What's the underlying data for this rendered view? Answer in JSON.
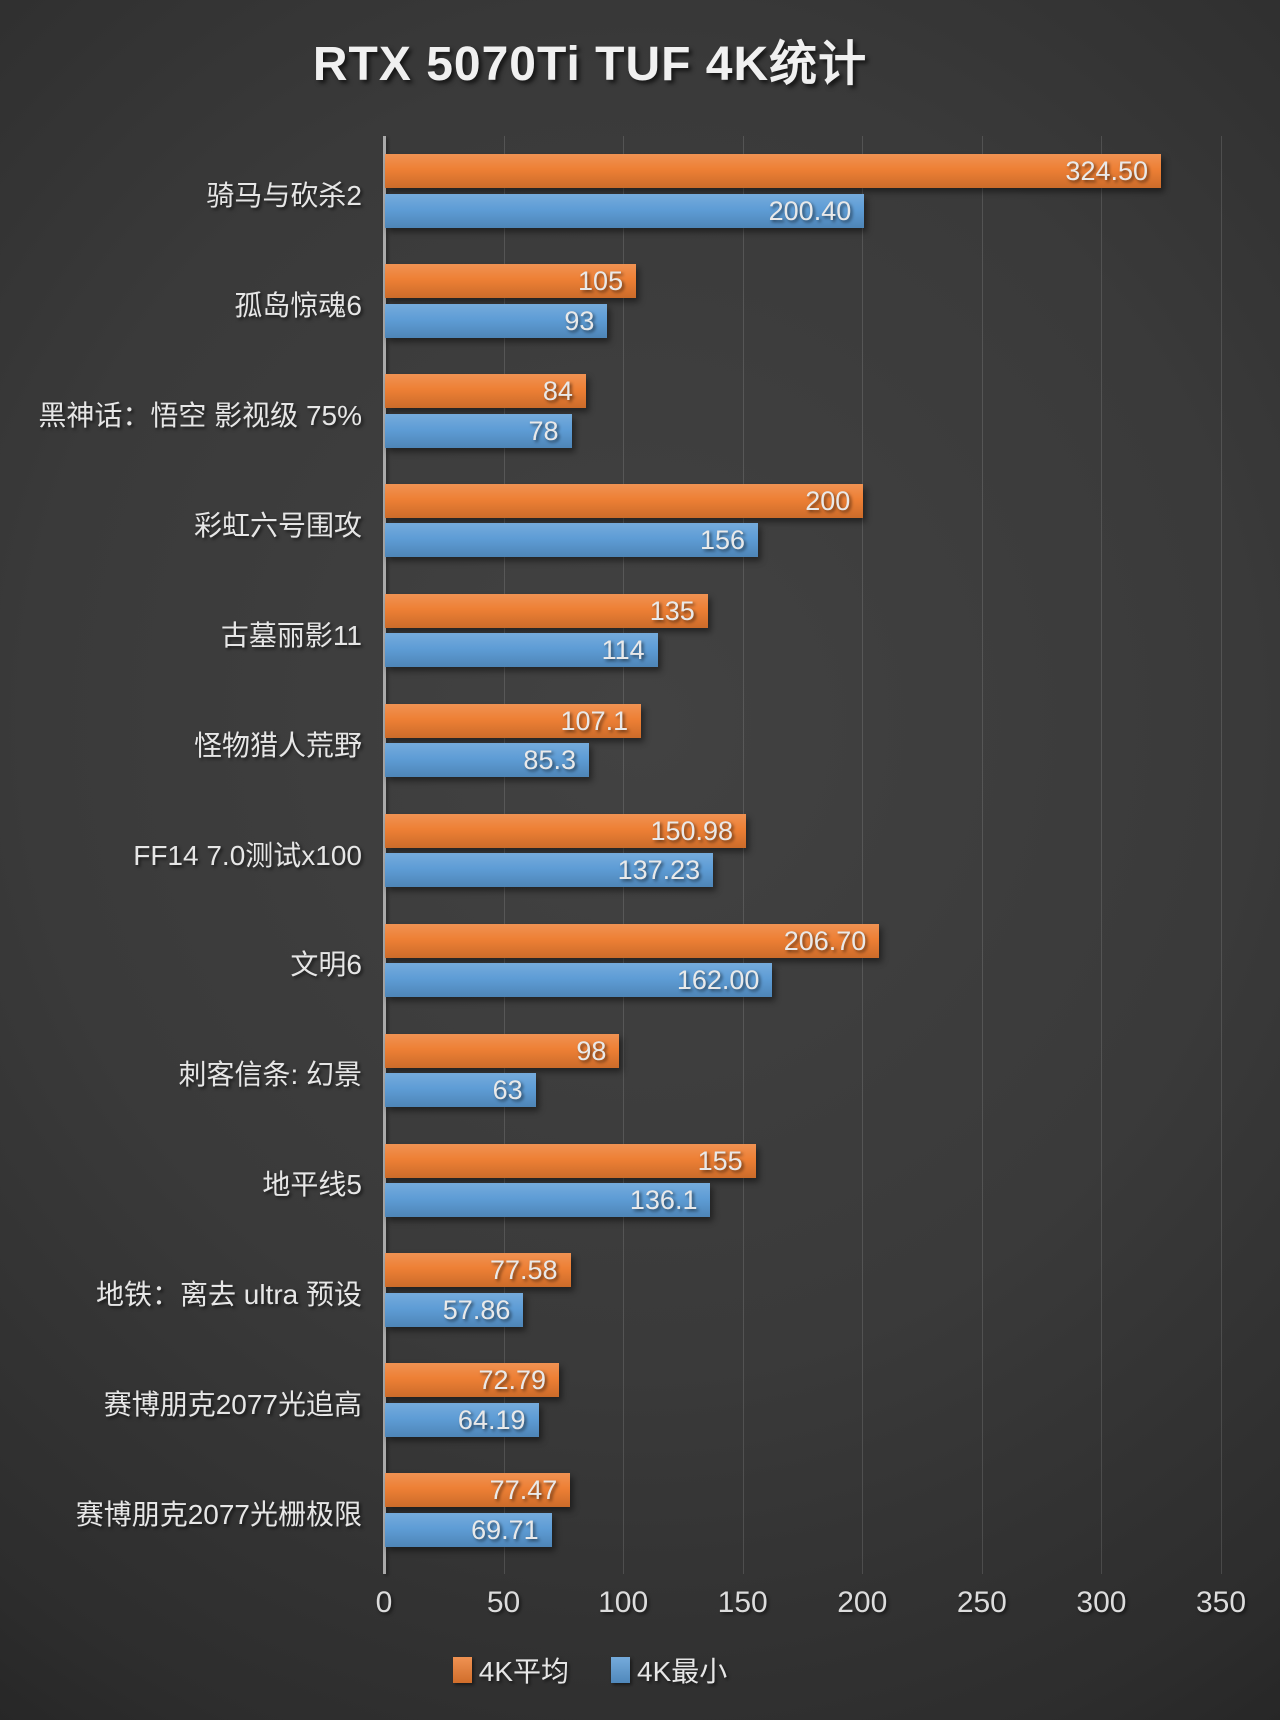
{
  "title": "RTX 5070Ti TUF 4K统计",
  "colors": {
    "avg_orange": "#ED7D31",
    "min_blue": "#5B9BD5",
    "background_dark": "#3A3A3A",
    "text_light": "#E6E6E6"
  },
  "legend": {
    "items": [
      {
        "label": "4K平均",
        "color": "#ED7D31"
      },
      {
        "label": "4K最小",
        "color": "#5B9BD5"
      }
    ]
  },
  "chart_data": {
    "type": "bar",
    "orientation": "horizontal",
    "title": "RTX 5070Ti TUF 4K统计",
    "xlabel": "",
    "ylabel": "",
    "xlim": [
      0,
      350
    ],
    "x_ticks": [
      0,
      50,
      100,
      150,
      200,
      250,
      300,
      350
    ],
    "grid": true,
    "legend_position": "bottom",
    "categories": [
      "骑马与砍杀2",
      "孤岛惊魂6",
      "黑神话：悟空 影视级 75%",
      "彩虹六号围攻",
      "古墓丽影11",
      "怪物猎人荒野",
      "FF14 7.0测试x100",
      "文明6",
      "刺客信条: 幻景",
      "地平线5",
      "地铁：离去 ultra 预设",
      "赛博朋克2077光追高",
      "赛博朋克2077光栅极限"
    ],
    "series": [
      {
        "name": "4K平均",
        "color": "#ED7D31",
        "values": [
          324.5,
          105,
          84,
          200,
          135,
          107.1,
          150.98,
          206.7,
          98,
          155,
          77.58,
          72.79,
          77.47
        ],
        "value_labels": [
          "324.50",
          "105",
          "84",
          "200",
          "135",
          "107.1",
          "150.98",
          "206.70",
          "98",
          "155",
          "77.58",
          "72.79",
          "77.47"
        ]
      },
      {
        "name": "4K最小",
        "color": "#5B9BD5",
        "values": [
          200.4,
          93,
          78,
          156,
          114,
          85.3,
          137.23,
          162.0,
          63,
          136.1,
          57.86,
          64.19,
          69.71
        ],
        "value_labels": [
          "200.40",
          "93",
          "78",
          "156",
          "114",
          "85.3",
          "137.23",
          "162.00",
          "63",
          "136.1",
          "57.86",
          "64.19",
          "69.71"
        ]
      }
    ]
  }
}
